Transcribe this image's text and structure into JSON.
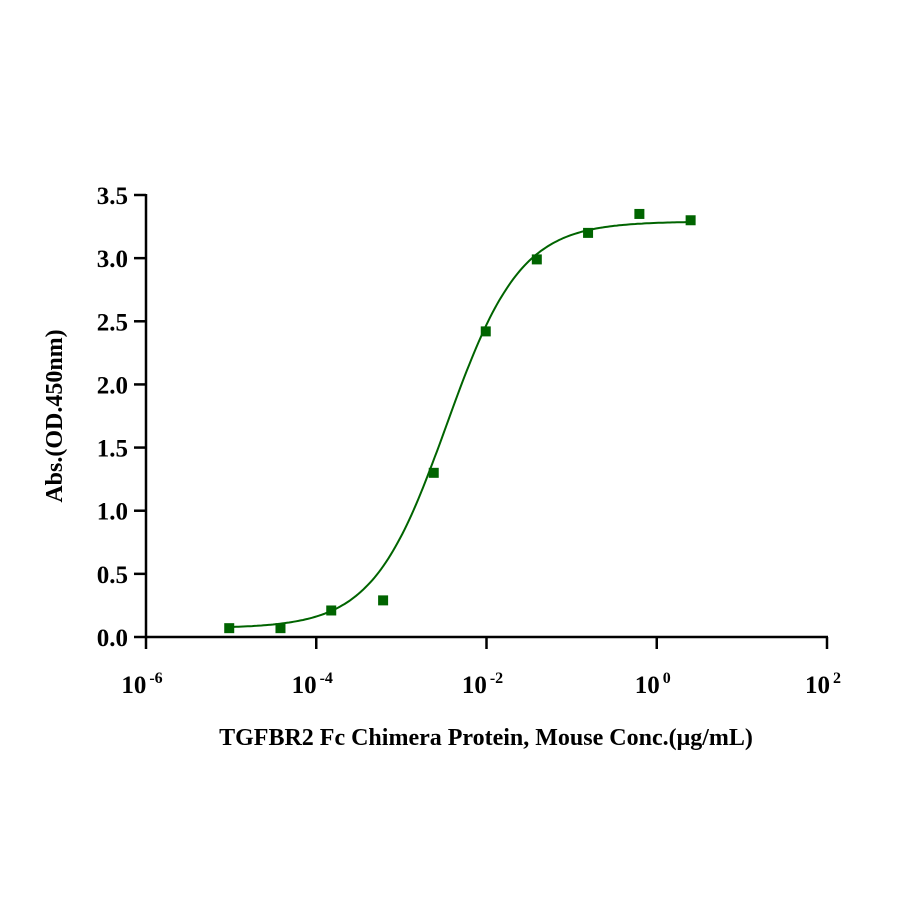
{
  "chart_data": {
    "type": "scatter",
    "xlabel": "TGFBR2 Fc Chimera Protein, Mouse Conc.(μg/mL)",
    "ylabel": "Abs.(OD.450nm)",
    "x_scale": "log",
    "xlim": [
      1e-06,
      100
    ],
    "ylim": [
      0,
      3.5
    ],
    "x_ticks": [
      {
        "base": "10",
        "exp": "-6"
      },
      {
        "base": "10",
        "exp": "-4"
      },
      {
        "base": "10",
        "exp": "-2"
      },
      {
        "base": "10",
        "exp": "0"
      },
      {
        "base": "10",
        "exp": "2"
      }
    ],
    "y_ticks": [
      "0.0",
      "0.5",
      "1.0",
      "1.5",
      "2.0",
      "2.5",
      "3.0",
      "3.5"
    ],
    "grid": false,
    "marker": "square",
    "color": "#006400",
    "series": [
      {
        "x": [
          9.5e-06,
          3.8e-05,
          0.00015,
          0.00061,
          0.0024,
          0.0098,
          0.039,
          0.156,
          0.625,
          2.5
        ],
        "y": [
          0.07,
          0.07,
          0.21,
          0.29,
          1.3,
          2.42,
          2.99,
          3.2,
          3.35,
          3.3
        ]
      }
    ],
    "fit": {
      "model": "4PL",
      "bottom": 0.07,
      "top": 3.29,
      "ec50": 0.0034,
      "hill": 1.0
    }
  }
}
